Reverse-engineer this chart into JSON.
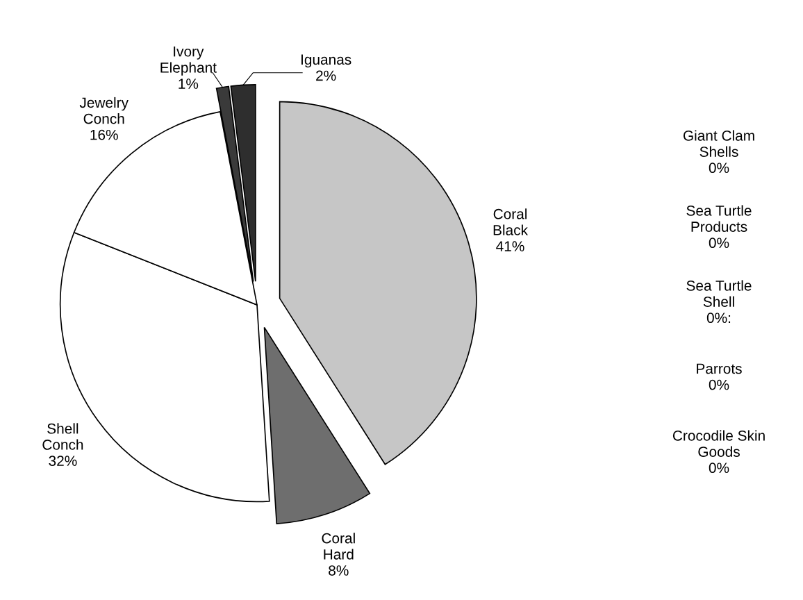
{
  "chart_data": {
    "type": "pie",
    "categories": [
      "Coral\nBlack",
      "Coral\nHard",
      "Shell\nConch",
      "Jewelry\nConch",
      "Ivory\nElephant",
      "Iguanas",
      "Giant Clam\nShells",
      "Sea Turtle\nProducts",
      "Sea Turtle\nShell",
      "Parrots",
      "Crocodile Skin\nGoods"
    ],
    "values": [
      41,
      8,
      32,
      16,
      1,
      2,
      0,
      0,
      0,
      0,
      0
    ],
    "value_labels": [
      "41%",
      "8%",
      "32%",
      "16%",
      "1%",
      "2%",
      "0%",
      "0%",
      "0%:",
      "0%",
      "0%"
    ],
    "colors": [
      "#c6c6c6",
      "#6e6e6e",
      "#ffffff",
      "#ffffff",
      "#3a3a3a",
      "#2e2e2e",
      "#ffffff",
      "#ffffff",
      "#ffffff",
      "#ffffff",
      "#ffffff"
    ]
  }
}
